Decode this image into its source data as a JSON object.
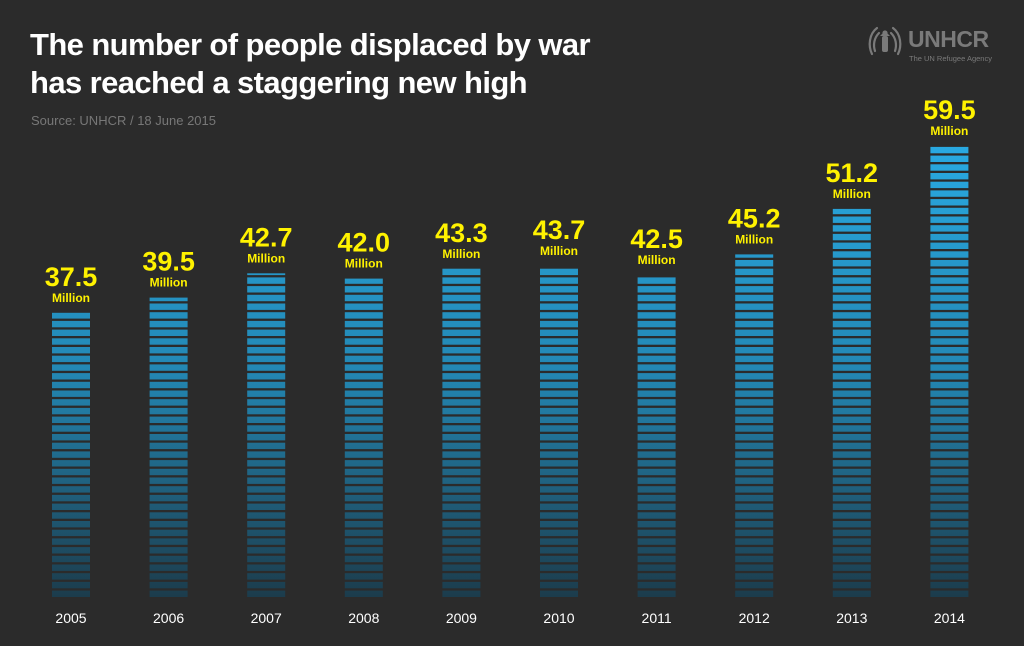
{
  "header": {
    "title_line1": "The number of people displaced by war",
    "title_line2": "has reached a staggering new high",
    "source": "Source: UNHCR / 18 June 2015"
  },
  "logo": {
    "name": "UNHCR",
    "tagline": "The UN Refugee Agency",
    "icon": "unhcr-emblem-icon"
  },
  "colors": {
    "background": "#2b2b2b",
    "value_label": "#fff200",
    "bar_top": "#29a9e1",
    "bar_bottom": "#1c3c4c",
    "text": "#ffffff"
  },
  "chart_data": {
    "type": "bar",
    "title": "The number of people displaced by war has reached a staggering new high",
    "categories": [
      "2005",
      "2006",
      "2007",
      "2008",
      "2009",
      "2010",
      "2011",
      "2012",
      "2013",
      "2014"
    ],
    "values": [
      37.5,
      39.5,
      42.7,
      42.0,
      43.3,
      43.7,
      42.5,
      45.2,
      51.2,
      59.5
    ],
    "value_labels": [
      "37.5",
      "39.5",
      "42.7",
      "42.0",
      "43.3",
      "43.7",
      "42.5",
      "45.2",
      "51.2",
      "59.5"
    ],
    "unit_label": "Million",
    "xlabel": "",
    "ylabel": "",
    "ylim": [
      0,
      59.5
    ],
    "grid": false,
    "legend": "none"
  }
}
